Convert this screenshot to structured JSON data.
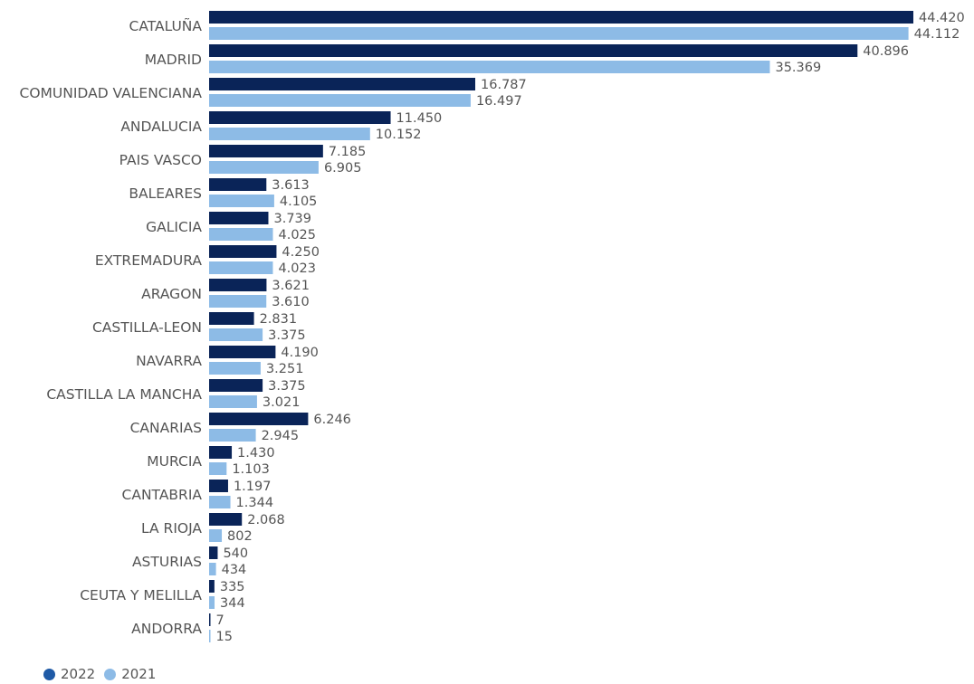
{
  "chart_data": {
    "type": "bar",
    "orientation": "horizontal",
    "categories": [
      "CATALUÑA",
      "MADRID",
      "COMUNIDAD VALENCIANA",
      "ANDALUCIA",
      "PAIS VASCO",
      "BALEARES",
      "GALICIA",
      "EXTREMADURA",
      "ARAGON",
      "CASTILLA-LEON",
      "NAVARRA",
      "CASTILLA LA MANCHA",
      "CANARIAS",
      "MURCIA",
      "CANTABRIA",
      "LA RIOJA",
      "ASTURIAS",
      "CEUTA Y MELILLA",
      "ANDORRA"
    ],
    "series": [
      {
        "name": "2022",
        "color": "#0a2458",
        "legend_color": "#1f5aa6",
        "values": [
          44420,
          40896,
          16787,
          11450,
          7185,
          3613,
          3739,
          4250,
          3621,
          2831,
          4190,
          3375,
          6246,
          1430,
          1197,
          2068,
          540,
          335,
          7
        ],
        "labels": [
          "44.420",
          "40.896",
          "16.787",
          "11.450",
          "7.185",
          "3.613",
          "3.739",
          "4.250",
          "3.621",
          "2.831",
          "4.190",
          "3.375",
          "6.246",
          "1.430",
          "1.197",
          "2.068",
          "540",
          "335",
          "7"
        ]
      },
      {
        "name": "2021",
        "color": "#8dbbe6",
        "legend_color": "#8dbbe6",
        "values": [
          44112,
          35369,
          16497,
          10152,
          6905,
          4105,
          4025,
          4023,
          3610,
          3375,
          3251,
          3021,
          2945,
          1103,
          1344,
          802,
          434,
          344,
          15
        ],
        "labels": [
          "44.112",
          "35.369",
          "16.497",
          "10.152",
          "6.905",
          "4.105",
          "4.025",
          "4.023",
          "3.610",
          "3.375",
          "3.251",
          "3.021",
          "2.945",
          "1.103",
          "1.344",
          "802",
          "434",
          "344",
          "15"
        ]
      }
    ],
    "legend_position": "bottom-left",
    "grid": false
  }
}
